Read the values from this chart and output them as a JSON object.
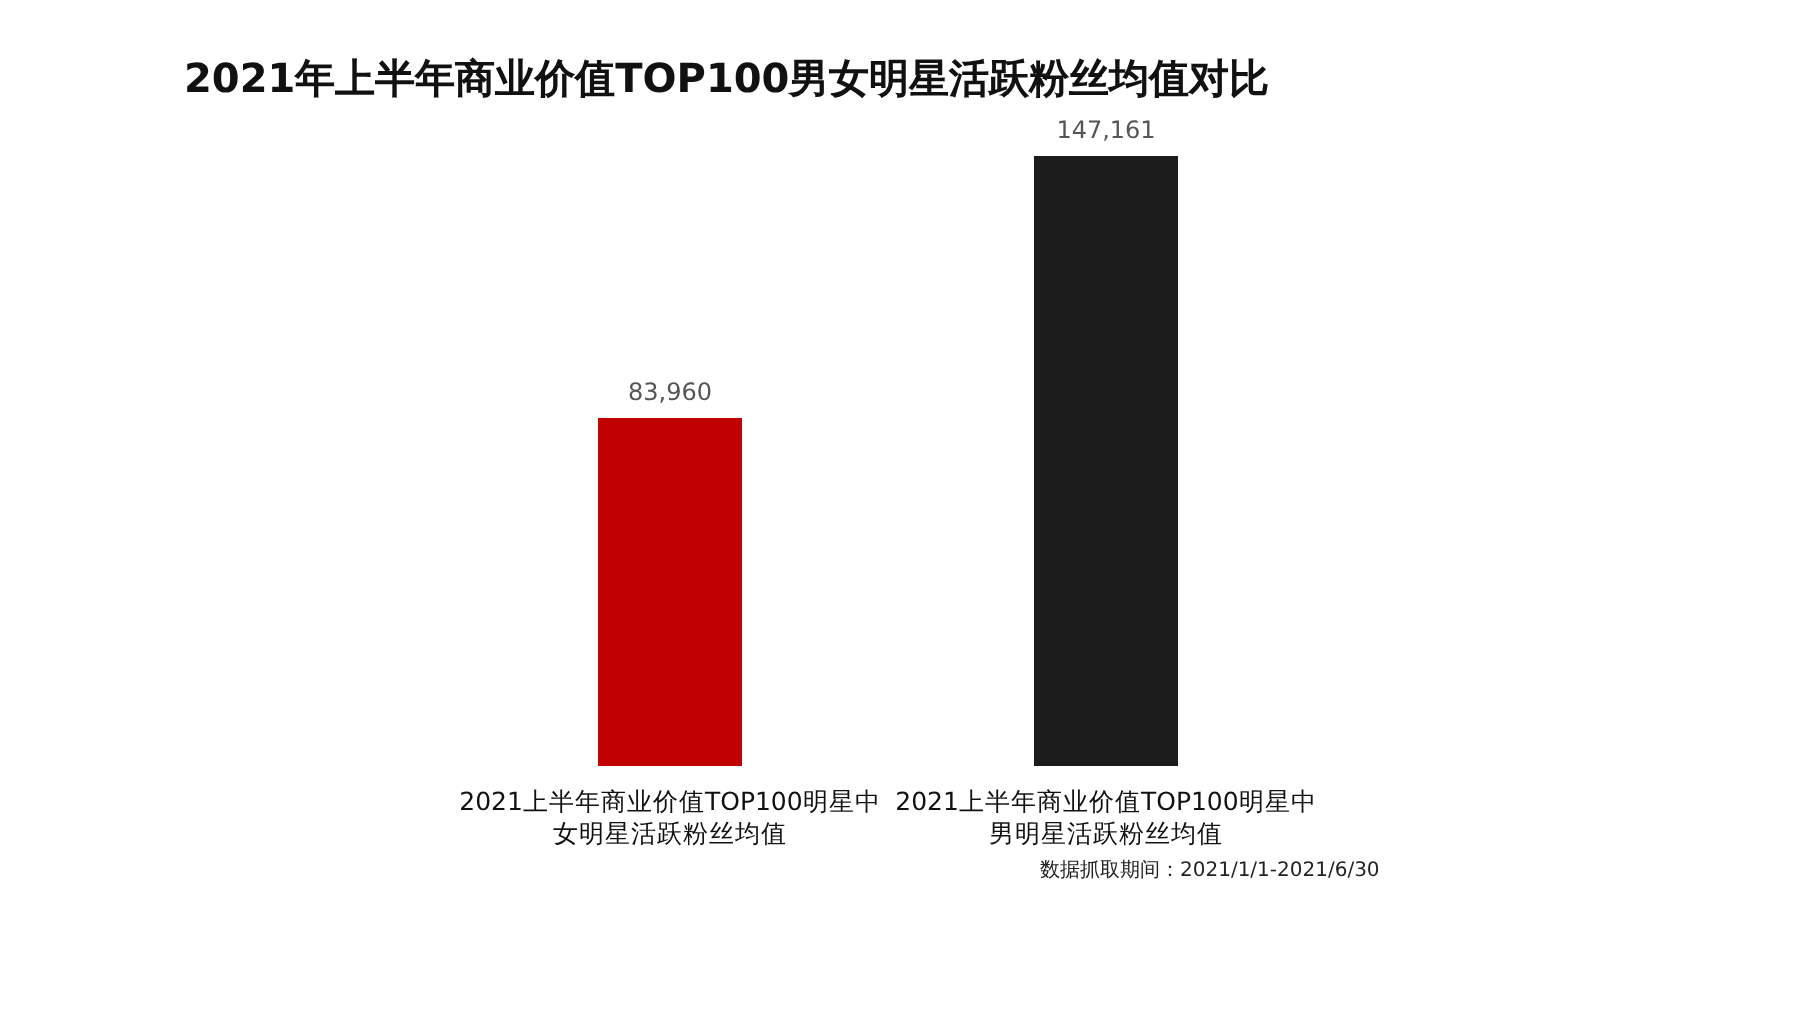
{
  "chart_data": {
    "type": "bar",
    "title": "2021年上半年商业价值TOP100男女明星活跃粉丝均值对比",
    "categories": [
      "2021上半年商业价值TOP100明星中女明星活跃粉丝均值",
      "2021上半年商业价值TOP100明星中男明星活跃粉丝均值"
    ],
    "values": [
      83960,
      147161
    ],
    "colors": [
      "#c00000",
      "#1c1c1c"
    ],
    "value_labels": [
      "83,960",
      "147,161"
    ],
    "annotations": [
      "数据抓取期间：2021/1/1-2021/6/30"
    ]
  }
}
